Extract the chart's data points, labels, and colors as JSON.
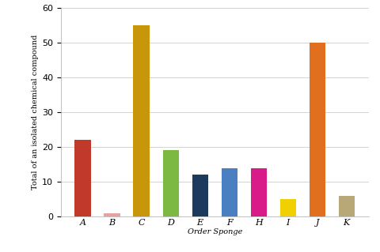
{
  "categories": [
    "A",
    "B",
    "C",
    "D",
    "E",
    "F",
    "H",
    "I",
    "J",
    "K"
  ],
  "values": [
    22,
    1,
    55,
    19,
    12,
    14,
    14,
    5,
    50,
    6
  ],
  "bar_colors": [
    "#c0392b",
    "#e8a0a0",
    "#c8960a",
    "#7cb942",
    "#1c3a5e",
    "#4a7fc1",
    "#d91b8a",
    "#f0d000",
    "#e07020",
    "#b8a878"
  ],
  "xlabel": "Order Sponge",
  "ylabel": "Total of an isolated chemical compound",
  "ylim": [
    0,
    60
  ],
  "yticks": [
    0,
    10,
    20,
    30,
    40,
    50,
    60
  ],
  "background_color": "#ffffff",
  "figsize": [
    4.8,
    3.19
  ],
  "dpi": 100
}
